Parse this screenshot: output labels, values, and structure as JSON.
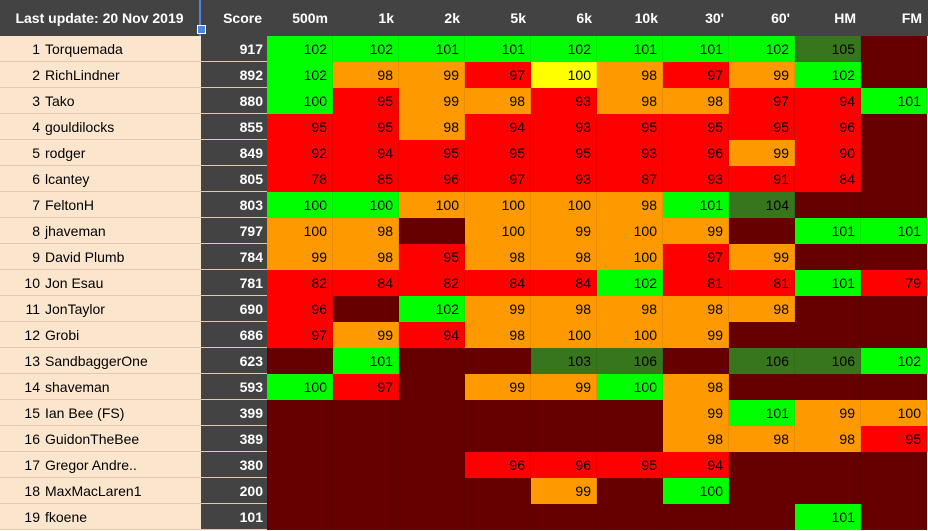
{
  "header": {
    "last_update": "Last update: 20 Nov 2019",
    "score": "Score",
    "events": [
      "500m",
      "1k",
      "2k",
      "5k",
      "6k",
      "10k",
      "30'",
      "60'",
      "HM",
      "FM"
    ]
  },
  "colors": {
    "bright_green": "#00ff00",
    "dark_green": "#38761d",
    "orange": "#ff9900",
    "red": "#ff0000",
    "yellow": "#ffff00",
    "dark_red": "#660000",
    "name_bg": "#fce5cd",
    "header_bg": "#434343"
  },
  "rows": [
    {
      "rank": "1",
      "name": "Torquemada",
      "score": "917",
      "cells": [
        [
          "102",
          "g"
        ],
        [
          "102",
          "g"
        ],
        [
          "101",
          "g"
        ],
        [
          "101",
          "g"
        ],
        [
          "102",
          "g"
        ],
        [
          "101",
          "g"
        ],
        [
          "101",
          "g"
        ],
        [
          "102",
          "g"
        ],
        [
          "105",
          "dg"
        ],
        [
          "",
          "dr"
        ]
      ]
    },
    {
      "rank": "2",
      "name": "RichLindner",
      "score": "892",
      "cells": [
        [
          "102",
          "g"
        ],
        [
          "98",
          "o"
        ],
        [
          "99",
          "o"
        ],
        [
          "97",
          "r"
        ],
        [
          "100",
          "y"
        ],
        [
          "98",
          "o"
        ],
        [
          "97",
          "r"
        ],
        [
          "99",
          "o"
        ],
        [
          "102",
          "g"
        ],
        [
          "",
          "dr"
        ]
      ]
    },
    {
      "rank": "3",
      "name": "Tako",
      "score": "880",
      "cells": [
        [
          "100",
          "g"
        ],
        [
          "95",
          "r"
        ],
        [
          "99",
          "o"
        ],
        [
          "98",
          "o"
        ],
        [
          "93",
          "r"
        ],
        [
          "98",
          "o"
        ],
        [
          "98",
          "o"
        ],
        [
          "97",
          "r"
        ],
        [
          "94",
          "r"
        ],
        [
          "101",
          "g"
        ]
      ]
    },
    {
      "rank": "4",
      "name": "gouldilocks",
      "score": "855",
      "cells": [
        [
          "95",
          "r"
        ],
        [
          "95",
          "r"
        ],
        [
          "98",
          "o"
        ],
        [
          "94",
          "r"
        ],
        [
          "93",
          "r"
        ],
        [
          "95",
          "r"
        ],
        [
          "95",
          "r"
        ],
        [
          "95",
          "r"
        ],
        [
          "96",
          "r"
        ],
        [
          "",
          "dr"
        ]
      ]
    },
    {
      "rank": "5",
      "name": "rodger",
      "score": "849",
      "cells": [
        [
          "92",
          "r"
        ],
        [
          "94",
          "r"
        ],
        [
          "95",
          "r"
        ],
        [
          "95",
          "r"
        ],
        [
          "95",
          "r"
        ],
        [
          "93",
          "r"
        ],
        [
          "96",
          "r"
        ],
        [
          "99",
          "o"
        ],
        [
          "90",
          "r"
        ],
        [
          "",
          "dr"
        ]
      ]
    },
    {
      "rank": "6",
      "name": "lcantey",
      "score": "805",
      "cells": [
        [
          "78",
          "r"
        ],
        [
          "85",
          "r"
        ],
        [
          "96",
          "r"
        ],
        [
          "97",
          "r"
        ],
        [
          "93",
          "r"
        ],
        [
          "87",
          "r"
        ],
        [
          "93",
          "r"
        ],
        [
          "91",
          "r"
        ],
        [
          "84",
          "r"
        ],
        [
          "",
          "dr"
        ]
      ]
    },
    {
      "rank": "7",
      "name": "FeltonH",
      "score": "803",
      "cells": [
        [
          "100",
          "g"
        ],
        [
          "100",
          "g"
        ],
        [
          "100",
          "o"
        ],
        [
          "100",
          "o"
        ],
        [
          "100",
          "o"
        ],
        [
          "98",
          "o"
        ],
        [
          "101",
          "g"
        ],
        [
          "104",
          "dg"
        ],
        [
          "",
          "dr"
        ],
        [
          "",
          "dr"
        ]
      ]
    },
    {
      "rank": "8",
      "name": "jhaveman",
      "score": "797",
      "cells": [
        [
          "100",
          "o"
        ],
        [
          "98",
          "o"
        ],
        [
          "",
          "dr"
        ],
        [
          "100",
          "o"
        ],
        [
          "99",
          "o"
        ],
        [
          "100",
          "o"
        ],
        [
          "99",
          "o"
        ],
        [
          "",
          "dr"
        ],
        [
          "101",
          "g"
        ],
        [
          "101",
          "g"
        ]
      ]
    },
    {
      "rank": "9",
      "name": "David Plumb",
      "score": "784",
      "cells": [
        [
          "99",
          "o"
        ],
        [
          "98",
          "o"
        ],
        [
          "95",
          "r"
        ],
        [
          "98",
          "o"
        ],
        [
          "98",
          "o"
        ],
        [
          "100",
          "o"
        ],
        [
          "97",
          "r"
        ],
        [
          "99",
          "o"
        ],
        [
          "",
          "dr"
        ],
        [
          "",
          "dr"
        ]
      ]
    },
    {
      "rank": "10",
      "name": "Jon Esau",
      "score": "781",
      "cells": [
        [
          "82",
          "r"
        ],
        [
          "84",
          "r"
        ],
        [
          "82",
          "r"
        ],
        [
          "84",
          "r"
        ],
        [
          "84",
          "r"
        ],
        [
          "102",
          "g"
        ],
        [
          "81",
          "r"
        ],
        [
          "81",
          "r"
        ],
        [
          "101",
          "g"
        ],
        [
          "79",
          "r"
        ]
      ]
    },
    {
      "rank": "11",
      "name": "JonTaylor",
      "score": "690",
      "cells": [
        [
          "96",
          "r"
        ],
        [
          "",
          "dr"
        ],
        [
          "102",
          "g"
        ],
        [
          "99",
          "o"
        ],
        [
          "98",
          "o"
        ],
        [
          "98",
          "o"
        ],
        [
          "98",
          "o"
        ],
        [
          "98",
          "o"
        ],
        [
          "",
          "dr"
        ],
        [
          "",
          "dr"
        ]
      ]
    },
    {
      "rank": "12",
      "name": "Grobi",
      "score": "686",
      "cells": [
        [
          "97",
          "r"
        ],
        [
          "99",
          "o"
        ],
        [
          "94",
          "r"
        ],
        [
          "98",
          "o"
        ],
        [
          "100",
          "o"
        ],
        [
          "100",
          "o"
        ],
        [
          "99",
          "o"
        ],
        [
          "",
          "dr"
        ],
        [
          "",
          "dr"
        ],
        [
          "",
          "dr"
        ]
      ]
    },
    {
      "rank": "13",
      "name": "SandbaggerOne",
      "score": "623",
      "cells": [
        [
          "",
          "dr"
        ],
        [
          "101",
          "g"
        ],
        [
          "",
          "dr"
        ],
        [
          "",
          "dr"
        ],
        [
          "103",
          "dg"
        ],
        [
          "106",
          "dg"
        ],
        [
          "",
          "dr"
        ],
        [
          "106",
          "dg"
        ],
        [
          "106",
          "dg"
        ],
        [
          "102",
          "g"
        ]
      ]
    },
    {
      "rank": "14",
      "name": "shaveman",
      "score": "593",
      "cells": [
        [
          "100",
          "g"
        ],
        [
          "97",
          "r"
        ],
        [
          "",
          "dr"
        ],
        [
          "99",
          "o"
        ],
        [
          "99",
          "o"
        ],
        [
          "100",
          "g"
        ],
        [
          "98",
          "o"
        ],
        [
          "",
          "dr"
        ],
        [
          "",
          "dr"
        ],
        [
          "",
          "dr"
        ]
      ]
    },
    {
      "rank": "15",
      "name": "Ian Bee (FS)",
      "score": "399",
      "cells": [
        [
          "",
          "dr"
        ],
        [
          "",
          "dr"
        ],
        [
          "",
          "dr"
        ],
        [
          "",
          "dr"
        ],
        [
          "",
          "dr"
        ],
        [
          "",
          "dr"
        ],
        [
          "99",
          "o"
        ],
        [
          "101",
          "g"
        ],
        [
          "99",
          "o"
        ],
        [
          "100",
          "o"
        ]
      ]
    },
    {
      "rank": "16",
      "name": "GuidonTheBee",
      "score": "389",
      "cells": [
        [
          "",
          "dr"
        ],
        [
          "",
          "dr"
        ],
        [
          "",
          "dr"
        ],
        [
          "",
          "dr"
        ],
        [
          "",
          "dr"
        ],
        [
          "",
          "dr"
        ],
        [
          "98",
          "o"
        ],
        [
          "98",
          "o"
        ],
        [
          "98",
          "o"
        ],
        [
          "95",
          "r"
        ]
      ]
    },
    {
      "rank": "17",
      "name": "Gregor Andre..",
      "score": "380",
      "cells": [
        [
          "",
          "dr"
        ],
        [
          "",
          "dr"
        ],
        [
          "",
          "dr"
        ],
        [
          "96",
          "r"
        ],
        [
          "96",
          "r"
        ],
        [
          "95",
          "r"
        ],
        [
          "94",
          "r"
        ],
        [
          "",
          "dr"
        ],
        [
          "",
          "dr"
        ],
        [
          "",
          "dr"
        ]
      ]
    },
    {
      "rank": "18",
      "name": "MaxMacLaren1",
      "score": "200",
      "cells": [
        [
          "",
          "dr"
        ],
        [
          "",
          "dr"
        ],
        [
          "",
          "dr"
        ],
        [
          "",
          "dr"
        ],
        [
          "99",
          "o"
        ],
        [
          "",
          "dr"
        ],
        [
          "100",
          "g"
        ],
        [
          "",
          "dr"
        ],
        [
          "",
          "dr"
        ],
        [
          "",
          "dr"
        ]
      ]
    },
    {
      "rank": "19",
      "name": "fkoene",
      "score": "101",
      "cells": [
        [
          "",
          "dr"
        ],
        [
          "",
          "dr"
        ],
        [
          "",
          "dr"
        ],
        [
          "",
          "dr"
        ],
        [
          "",
          "dr"
        ],
        [
          "",
          "dr"
        ],
        [
          "",
          "dr"
        ],
        [
          "",
          "dr"
        ],
        [
          "101",
          "g"
        ],
        [
          "",
          "dr"
        ]
      ]
    }
  ]
}
